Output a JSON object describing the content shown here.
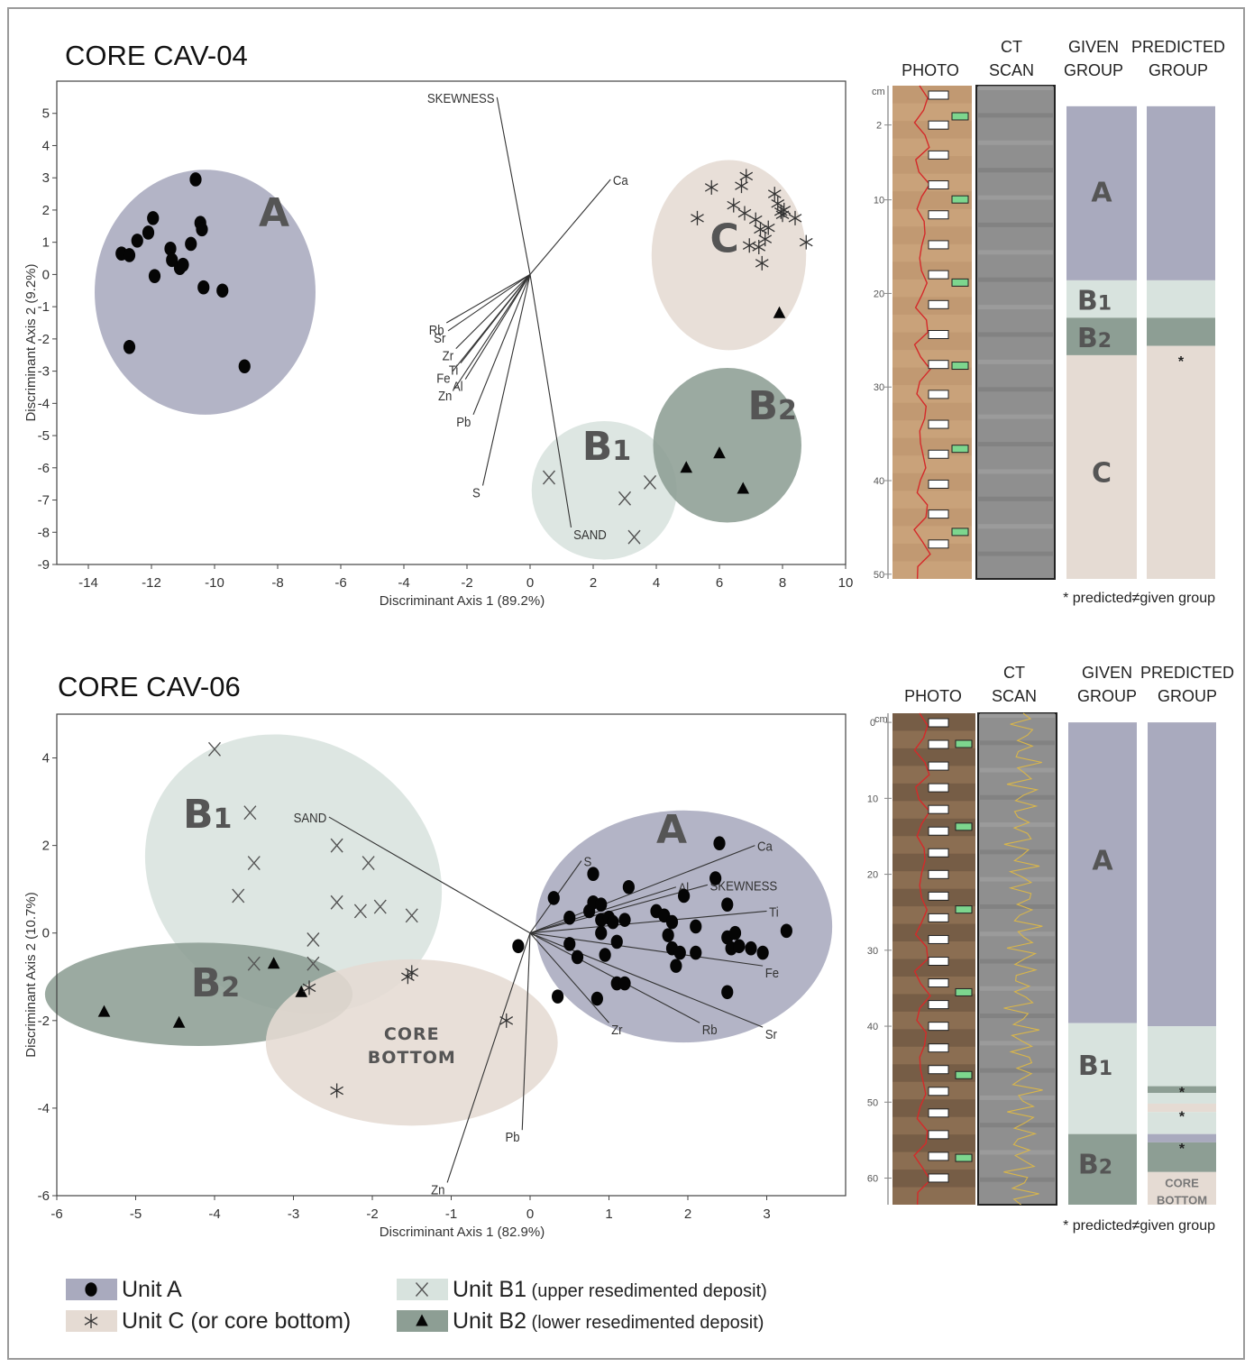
{
  "colors": {
    "unit_a": "#a9aabe",
    "unit_b1": "#d8e3de",
    "unit_b2": "#8d9e94",
    "unit_c": "#e5dbd3"
  },
  "panels": {
    "cav04": {
      "title": "CORE CAV-04"
    },
    "cav06": {
      "title": "CORE CAV-06"
    }
  },
  "core_columns": {
    "photo": "PHOTO",
    "ct_line1": "CT",
    "ct_line2": "SCAN",
    "given_line1": "GIVEN",
    "given_line2": "GROUP",
    "pred_line1": "PREDICTED",
    "pred_line2": "GROUP",
    "depth_unit": "cm",
    "footnote": "* predicted≠given group"
  },
  "core_logs": [
    {
      "panel": "cav04",
      "depth_ticks": [
        "2",
        "10",
        "20",
        "30",
        "40",
        "50"
      ],
      "given": [
        {
          "unit": "A",
          "label": "A",
          "from": 0,
          "to": 18.6
        },
        {
          "unit": "B1",
          "label": "B",
          "sub": "1",
          "from": 18.6,
          "to": 22.6
        },
        {
          "unit": "B2",
          "label": "B",
          "sub": "2",
          "from": 22.6,
          "to": 26.6
        },
        {
          "unit": "C",
          "label": "C",
          "from": 26.6,
          "to": 50.5
        }
      ],
      "predicted": [
        {
          "unit": "A",
          "from": 0,
          "to": 18.6
        },
        {
          "unit": "B1",
          "from": 18.6,
          "to": 22.6
        },
        {
          "unit": "B2",
          "from": 22.6,
          "to": 25.6
        },
        {
          "unit": "C",
          "from": 25.6,
          "to": 50.5
        }
      ],
      "mismatch_marks": [
        "*"
      ]
    },
    {
      "panel": "cav06",
      "depth_ticks": [
        "0",
        "10",
        "20",
        "30",
        "40",
        "50",
        "60"
      ],
      "given": [
        {
          "unit": "A",
          "label": "A",
          "from": 0,
          "to": 39.6
        },
        {
          "unit": "B1",
          "label": "B",
          "sub": "1",
          "from": 39.6,
          "to": 54.2
        },
        {
          "unit": "B2",
          "label": "B",
          "sub": "2",
          "from": 54.2,
          "to": 63.5
        }
      ],
      "predicted": [
        {
          "unit": "A",
          "from": 0,
          "to": 40
        },
        {
          "unit": "B1",
          "from": 40,
          "to": 47.9
        },
        {
          "unit": "B2",
          "from": 47.9,
          "to": 48.8
        },
        {
          "unit": "B1",
          "from": 48.8,
          "to": 50.2
        },
        {
          "unit": "C",
          "from": 50.2,
          "to": 51.3
        },
        {
          "unit": "B1",
          "from": 51.3,
          "to": 54.2
        },
        {
          "unit": "A",
          "from": 54.2,
          "to": 55.3
        },
        {
          "unit": "B2",
          "from": 55.3,
          "to": 59.2
        },
        {
          "unit": "C",
          "from": 59.2,
          "to": 63.5
        }
      ],
      "core_bottom_label": [
        "CORE",
        "BOTTOM"
      ],
      "mismatch_marks": [
        "*",
        "*",
        "*"
      ]
    }
  ],
  "legend": {
    "items": [
      {
        "unit": "A",
        "marker": "circle",
        "label": "Unit A",
        "note": ""
      },
      {
        "unit": "C",
        "marker": "asterisk",
        "label": "Unit C (or core bottom)",
        "note": ""
      },
      {
        "unit": "B1",
        "marker": "cross",
        "label": "Unit B1",
        "note": "(upper resedimented deposit)"
      },
      {
        "unit": "B2",
        "marker": "triangle",
        "label": "Unit B2",
        "note": "(lower resedimented deposit)"
      }
    ]
  },
  "chart_data": [
    {
      "type": "scatter",
      "panel": "cav04",
      "title": "",
      "xlabel": "Discriminant Axis 1 (89.2%)",
      "ylabel": "Discriminant Axis 2 (9.2%)",
      "xlim": [
        -15,
        10
      ],
      "ylim": [
        -9,
        6
      ],
      "xticks": [
        -14,
        -12,
        -10,
        -8,
        -6,
        -4,
        -2,
        0,
        2,
        4,
        6,
        8,
        10
      ],
      "yticks": [
        -9,
        -8,
        -7,
        -6,
        -5,
        -4,
        -3,
        -2,
        -1,
        0,
        1,
        2,
        3,
        4,
        5
      ],
      "grid": false,
      "groups": [
        {
          "unit": "A",
          "label": "A",
          "label_at": [
            -8.6,
            1.5
          ],
          "center": [
            -10.3,
            -0.55
          ],
          "radius": [
            3.5,
            3.8
          ]
        },
        {
          "unit": "C",
          "label": "C",
          "label_at": [
            5.7,
            0.7
          ],
          "center": [
            6.3,
            0.6
          ],
          "radius": [
            2.45,
            2.95
          ]
        },
        {
          "unit": "B1",
          "label": "B",
          "sub": "1",
          "label_at": [
            1.65,
            -5.75
          ],
          "center": [
            2.35,
            -6.7
          ],
          "radius": [
            2.3,
            2.15
          ]
        },
        {
          "unit": "B2",
          "label": "B",
          "sub": "2",
          "label_at": [
            6.9,
            -4.5
          ],
          "center": [
            6.25,
            -5.3
          ],
          "radius": [
            2.35,
            2.4
          ]
        }
      ],
      "series": [
        {
          "unit": "A",
          "marker": "circle",
          "points": [
            [
              -12.95,
              0.65
            ],
            [
              -12.7,
              0.6
            ],
            [
              -12.45,
              1.05
            ],
            [
              -12.1,
              1.3
            ],
            [
              -11.95,
              1.75
            ],
            [
              -11.9,
              -0.05
            ],
            [
              -11.4,
              0.8
            ],
            [
              -11.35,
              0.45
            ],
            [
              -11.1,
              0.2
            ],
            [
              -11.0,
              0.3
            ],
            [
              -10.75,
              0.95
            ],
            [
              -10.6,
              2.95
            ],
            [
              -10.45,
              1.6
            ],
            [
              -10.4,
              1.4
            ],
            [
              -10.35,
              -0.4
            ],
            [
              -9.75,
              -0.5
            ],
            [
              -9.05,
              -2.85
            ],
            [
              -12.7,
              -2.25
            ]
          ]
        },
        {
          "unit": "C",
          "marker": "asterisk",
          "points": [
            [
              5.3,
              1.75
            ],
            [
              5.75,
              2.7
            ],
            [
              6.45,
              2.15
            ],
            [
              6.7,
              2.75
            ],
            [
              6.8,
              1.9
            ],
            [
              6.85,
              3.05
            ],
            [
              6.95,
              0.9
            ],
            [
              7.15,
              1.7
            ],
            [
              7.25,
              0.85
            ],
            [
              7.3,
              1.4
            ],
            [
              7.35,
              0.35
            ],
            [
              7.45,
              1.1
            ],
            [
              7.55,
              1.45
            ],
            [
              7.75,
              2.5
            ],
            [
              7.85,
              2.2
            ],
            [
              7.95,
              1.95
            ],
            [
              8.0,
              1.85
            ],
            [
              8.05,
              2.0
            ],
            [
              8.4,
              1.75
            ],
            [
              8.75,
              1.0
            ]
          ]
        },
        {
          "unit": "C",
          "marker": "triangle",
          "points": [
            [
              7.9,
              -1.2
            ]
          ]
        },
        {
          "unit": "B1",
          "marker": "cross",
          "points": [
            [
              0.6,
              -6.3
            ],
            [
              3.0,
              -6.95
            ],
            [
              3.8,
              -6.45
            ],
            [
              3.3,
              -8.15
            ]
          ]
        },
        {
          "unit": "B2",
          "marker": "triangle",
          "points": [
            [
              4.95,
              -6.0
            ],
            [
              6.0,
              -5.55
            ],
            [
              6.75,
              -6.65
            ]
          ]
        }
      ],
      "vectors": [
        {
          "label": "SKEWNESS",
          "to": [
            -1.05,
            5.5
          ]
        },
        {
          "label": "Ca",
          "to": [
            2.55,
            2.95
          ]
        },
        {
          "label": "Rb",
          "to": [
            -2.65,
            -1.5
          ]
        },
        {
          "label": "Sr",
          "to": [
            -2.6,
            -1.75
          ]
        },
        {
          "label": "Zr",
          "to": [
            -2.35,
            -2.3
          ]
        },
        {
          "label": "Ti",
          "to": [
            -2.2,
            -2.75
          ]
        },
        {
          "label": "Fe",
          "to": [
            -2.45,
            -3.0
          ]
        },
        {
          "label": "Al",
          "to": [
            -2.05,
            -3.25
          ]
        },
        {
          "label": "Zn",
          "to": [
            -2.4,
            -3.55
          ]
        },
        {
          "label": "Pb",
          "to": [
            -1.8,
            -4.35
          ]
        },
        {
          "label": "S",
          "to": [
            -1.5,
            -6.55
          ]
        },
        {
          "label": "SAND",
          "to": [
            1.3,
            -7.85
          ]
        }
      ]
    },
    {
      "type": "scatter",
      "panel": "cav06",
      "title": "",
      "xlabel": "Discriminant Axis 1 (82.9%)",
      "ylabel": "Discriminant Axis 2 (10.7%)",
      "xlim": [
        -6,
        4
      ],
      "ylim": [
        -6,
        5
      ],
      "xticks": [
        -6,
        -5,
        -4,
        -3,
        -2,
        -1,
        0,
        1,
        2,
        3
      ],
      "yticks": [
        -6,
        -4,
        -2,
        0,
        2,
        4
      ],
      "grid": false,
      "groups": [
        {
          "unit": "B1",
          "label": "B",
          "sub": "1",
          "label_at": [
            -4.4,
            2.4
          ],
          "center": [
            -3.0,
            1.35
          ],
          "radius": [
            1.95,
            3.05
          ],
          "rotate": 32
        },
        {
          "unit": "B2",
          "label": "B",
          "sub": "2",
          "label_at": [
            -4.3,
            -1.45
          ],
          "center": [
            -4.2,
            -1.4
          ],
          "radius": [
            1.95,
            1.18
          ]
        },
        {
          "unit": "C",
          "label": "CORE|BOTTOM",
          "label_at": [
            -1.5,
            -2.6
          ],
          "center": [
            -1.5,
            -2.5
          ],
          "radius": [
            1.85,
            1.9
          ]
        },
        {
          "unit": "A",
          "label": "A",
          "label_at": [
            1.6,
            2.05
          ],
          "center": [
            1.95,
            0.15
          ],
          "radius": [
            1.88,
            2.65
          ]
        }
      ],
      "series": [
        {
          "unit": "A",
          "marker": "circle",
          "points": [
            [
              -0.15,
              -0.3
            ],
            [
              0.3,
              0.8
            ],
            [
              0.35,
              -1.45
            ],
            [
              0.5,
              0.35
            ],
            [
              0.5,
              -0.25
            ],
            [
              0.6,
              -0.55
            ],
            [
              0.75,
              0.5
            ],
            [
              0.8,
              1.35
            ],
            [
              0.8,
              0.7
            ],
            [
              0.85,
              -1.5
            ],
            [
              0.9,
              0.65
            ],
            [
              0.9,
              0.3
            ],
            [
              0.9,
              0.0
            ],
            [
              0.95,
              -0.5
            ],
            [
              1.0,
              0.35
            ],
            [
              1.05,
              0.25
            ],
            [
              1.1,
              -1.15
            ],
            [
              1.1,
              -0.2
            ],
            [
              1.2,
              -1.15
            ],
            [
              1.2,
              0.3
            ],
            [
              1.25,
              1.05
            ],
            [
              1.6,
              0.5
            ],
            [
              1.7,
              0.4
            ],
            [
              1.75,
              -0.05
            ],
            [
              1.8,
              0.25
            ],
            [
              1.8,
              -0.35
            ],
            [
              1.85,
              -0.75
            ],
            [
              1.9,
              -0.45
            ],
            [
              1.95,
              0.85
            ],
            [
              2.1,
              -0.45
            ],
            [
              2.1,
              0.15
            ],
            [
              2.35,
              1.25
            ],
            [
              2.4,
              2.05
            ],
            [
              2.5,
              0.65
            ],
            [
              2.5,
              -1.35
            ],
            [
              2.5,
              -0.1
            ],
            [
              2.55,
              -0.35
            ],
            [
              2.6,
              0.0
            ],
            [
              2.65,
              -0.3
            ],
            [
              2.8,
              -0.35
            ],
            [
              2.95,
              -0.45
            ],
            [
              3.25,
              0.05
            ]
          ]
        },
        {
          "unit": "B1",
          "marker": "cross",
          "points": [
            [
              -4.0,
              4.2
            ],
            [
              -3.55,
              2.75
            ],
            [
              -3.5,
              1.6
            ],
            [
              -3.7,
              0.85
            ],
            [
              -2.45,
              2.0
            ],
            [
              -2.05,
              1.6
            ],
            [
              -2.45,
              0.7
            ],
            [
              -2.15,
              0.5
            ],
            [
              -1.9,
              0.6
            ],
            [
              -1.5,
              0.4
            ],
            [
              -2.75,
              -0.15
            ],
            [
              -2.75,
              -0.7
            ],
            [
              -3.5,
              -0.7
            ]
          ]
        },
        {
          "unit": "B1",
          "marker": "triangle",
          "points": [
            [
              -3.25,
              -0.7
            ]
          ]
        },
        {
          "unit": "B2",
          "marker": "triangle",
          "points": [
            [
              -5.4,
              -1.8
            ],
            [
              -4.45,
              -2.05
            ],
            [
              -2.9,
              -1.35
            ]
          ]
        },
        {
          "unit": "C",
          "marker": "asterisk",
          "points": [
            [
              -2.8,
              -1.25
            ],
            [
              -1.55,
              -1.0
            ],
            [
              -1.5,
              -0.9
            ],
            [
              -0.3,
              -2.0
            ],
            [
              -2.45,
              -3.6
            ]
          ]
        }
      ],
      "vectors": [
        {
          "label": "SAND",
          "to": [
            -2.55,
            2.65
          ]
        },
        {
          "label": "S",
          "to": [
            0.65,
            1.65
          ]
        },
        {
          "label": "Ca",
          "to": [
            2.85,
            2.0
          ]
        },
        {
          "label": "Al",
          "to": [
            1.85,
            1.05
          ]
        },
        {
          "label": "SKEWNESS",
          "to": [
            2.25,
            1.1
          ]
        },
        {
          "label": "Ti",
          "to": [
            3.0,
            0.5
          ]
        },
        {
          "label": "Fe",
          "to": [
            2.95,
            -0.75
          ]
        },
        {
          "label": "Sr",
          "to": [
            2.95,
            -2.15
          ]
        },
        {
          "label": "Rb",
          "to": [
            2.15,
            -2.05
          ]
        },
        {
          "label": "Zr",
          "to": [
            1.0,
            -2.05
          ]
        },
        {
          "label": "Pb",
          "to": [
            -0.1,
            -4.5
          ]
        },
        {
          "label": "Zn",
          "to": [
            -1.05,
            -5.7
          ]
        }
      ]
    }
  ]
}
